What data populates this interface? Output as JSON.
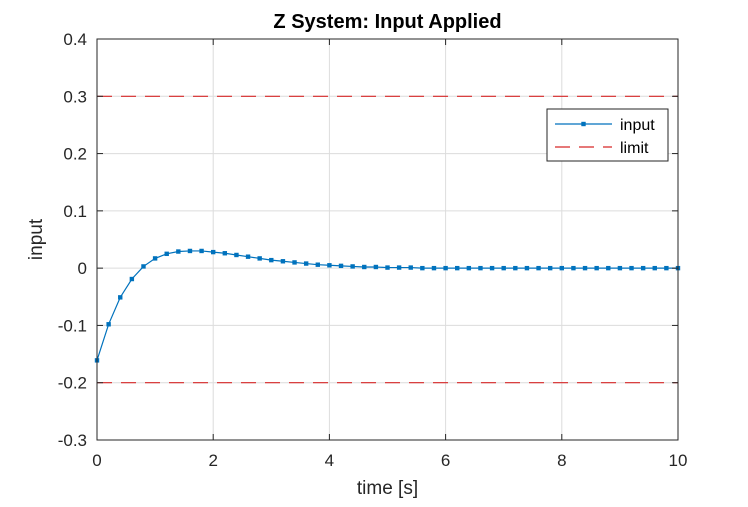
{
  "chart_data": {
    "type": "line",
    "title": "Z System: Input Applied",
    "xlabel": "time [s]",
    "ylabel": "input",
    "xlim": [
      0,
      10
    ],
    "ylim": [
      -0.3,
      0.4
    ],
    "xticks": [
      0,
      2,
      4,
      6,
      8,
      10
    ],
    "xtick_labels": [
      "0",
      "2",
      "4",
      "6",
      "8",
      "10"
    ],
    "yticks": [
      -0.3,
      -0.2,
      -0.1,
      0,
      0.1,
      0.2,
      0.3,
      0.4
    ],
    "ytick_labels": [
      "-0.3",
      "-0.2",
      "-0.1",
      "0",
      "0.1",
      "0.2",
      "0.3",
      "0.4"
    ],
    "grid": true,
    "legend_position": "top-right",
    "series": [
      {
        "name": "input",
        "style": "line-with-markers",
        "color": "#0072BD",
        "x": [
          0,
          0.2,
          0.4,
          0.6,
          0.8,
          1.0,
          1.2,
          1.4,
          1.6,
          1.8,
          2.0,
          2.2,
          2.4,
          2.6,
          2.8,
          3.0,
          3.2,
          3.4,
          3.6,
          3.8,
          4.0,
          4.2,
          4.4,
          4.6,
          4.8,
          5.0,
          5.2,
          5.4,
          5.6,
          5.8,
          6.0,
          6.2,
          6.4,
          6.6,
          6.8,
          7.0,
          7.2,
          7.4,
          7.6,
          7.8,
          8.0,
          8.2,
          8.4,
          8.6,
          8.8,
          9.0,
          9.2,
          9.4,
          9.6,
          9.8,
          10.0
        ],
        "y": [
          -0.161,
          -0.098,
          -0.051,
          -0.019,
          0.003,
          0.017,
          0.025,
          0.029,
          0.03,
          0.03,
          0.028,
          0.026,
          0.023,
          0.02,
          0.017,
          0.014,
          0.012,
          0.01,
          0.008,
          0.006,
          0.005,
          0.004,
          0.003,
          0.002,
          0.002,
          0.001,
          0.001,
          0.001,
          0.0,
          0.0,
          0.0,
          0.0,
          0.0,
          0.0,
          0.0,
          0.0,
          0.0,
          0.0,
          0.0,
          0.0,
          0.0,
          0.0,
          0.0,
          0.0,
          0.0,
          0.0,
          0.0,
          0.0,
          0.0,
          0.0,
          0.0
        ]
      },
      {
        "name": "limit",
        "style": "dashed",
        "color": "#D62728",
        "x": [
          0,
          10
        ],
        "y": [
          0.3,
          0.3
        ]
      },
      {
        "name": "",
        "style": "dashed",
        "color": "#D62728",
        "x": [
          0,
          10
        ],
        "y": [
          -0.2,
          -0.2
        ]
      }
    ]
  }
}
